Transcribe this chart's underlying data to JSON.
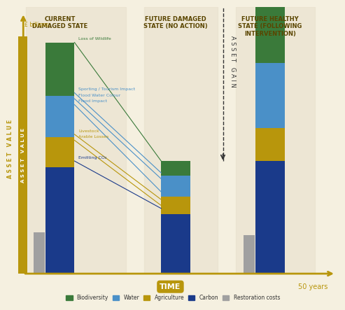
{
  "background_color": "#f5f0e0",
  "gold_color": "#b8960c",
  "title_color": "#b8960c",
  "axis_color": "#b8960c",
  "bar_width": 0.55,
  "colors": {
    "biodiversity": "#3a7a3a",
    "water": "#4a90c8",
    "agriculture": "#b8960c",
    "carbon": "#1a3a8a",
    "restoration": "#a0a0a0"
  },
  "bar1": {
    "label": "CURRENT\nDAMAGED STATE",
    "x": 1.0,
    "segments": [
      {
        "name": "carbon",
        "value": 1.8
      },
      {
        "name": "agriculture",
        "value": 0.5
      },
      {
        "name": "water",
        "value": 0.7
      },
      {
        "name": "biodiversity",
        "value": 0.9
      }
    ],
    "restoration": 0.7
  },
  "bar2": {
    "label": "FUTURE DAMAGED\nSTATE (NO ACTION)",
    "x": 3.2,
    "segments": [
      {
        "name": "carbon",
        "value": 1.0
      },
      {
        "name": "agriculture",
        "value": 0.3
      },
      {
        "name": "water",
        "value": 0.35
      },
      {
        "name": "biodiversity",
        "value": 0.25
      }
    ],
    "restoration": 0.0
  },
  "bar3": {
    "label": "FUTURE HEALTHY\nSTATE (FOLLOWING\nINTERVENTION)",
    "x": 5.0,
    "segments": [
      {
        "name": "carbon",
        "value": 1.9
      },
      {
        "name": "agriculture",
        "value": 0.55
      },
      {
        "name": "water",
        "value": 1.1
      },
      {
        "name": "biodiversity",
        "value": 1.7
      }
    ],
    "restoration": 0.65
  },
  "annotations": [
    {
      "text": "Loss of Wildlife",
      "color": "#3a7a3a"
    },
    {
      "text": "Sporting / Tourism Impact",
      "color": "#4a90c8"
    },
    {
      "text": "Flood Water Colour",
      "color": "#4a90c8"
    },
    {
      "text": "Flood Impact",
      "color": "#4a90c8"
    },
    {
      "text": "Livestock",
      "color": "#b8960c"
    },
    {
      "text": "Arable Losses",
      "color": "#b8960c"
    },
    {
      "text": "Emitting CO₂",
      "color": "#1a3a8a"
    }
  ],
  "legend": [
    {
      "label": "Biodiversity",
      "color": "#3a7a3a"
    },
    {
      "label": "Water",
      "color": "#4a90c8"
    },
    {
      "label": "Agriculture",
      "color": "#b8960c"
    },
    {
      "label": "Carbon",
      "color": "#1a3a8a"
    },
    {
      "label": "Restoration costs",
      "color": "#a0a0a0"
    }
  ],
  "ylabel": "£ billions",
  "xlabel": "TIME",
  "asset_value_label": "A S S E T   V A L U E",
  "asset_gain_label": "A S S E T   G A I N",
  "fifty_years": "50 years"
}
